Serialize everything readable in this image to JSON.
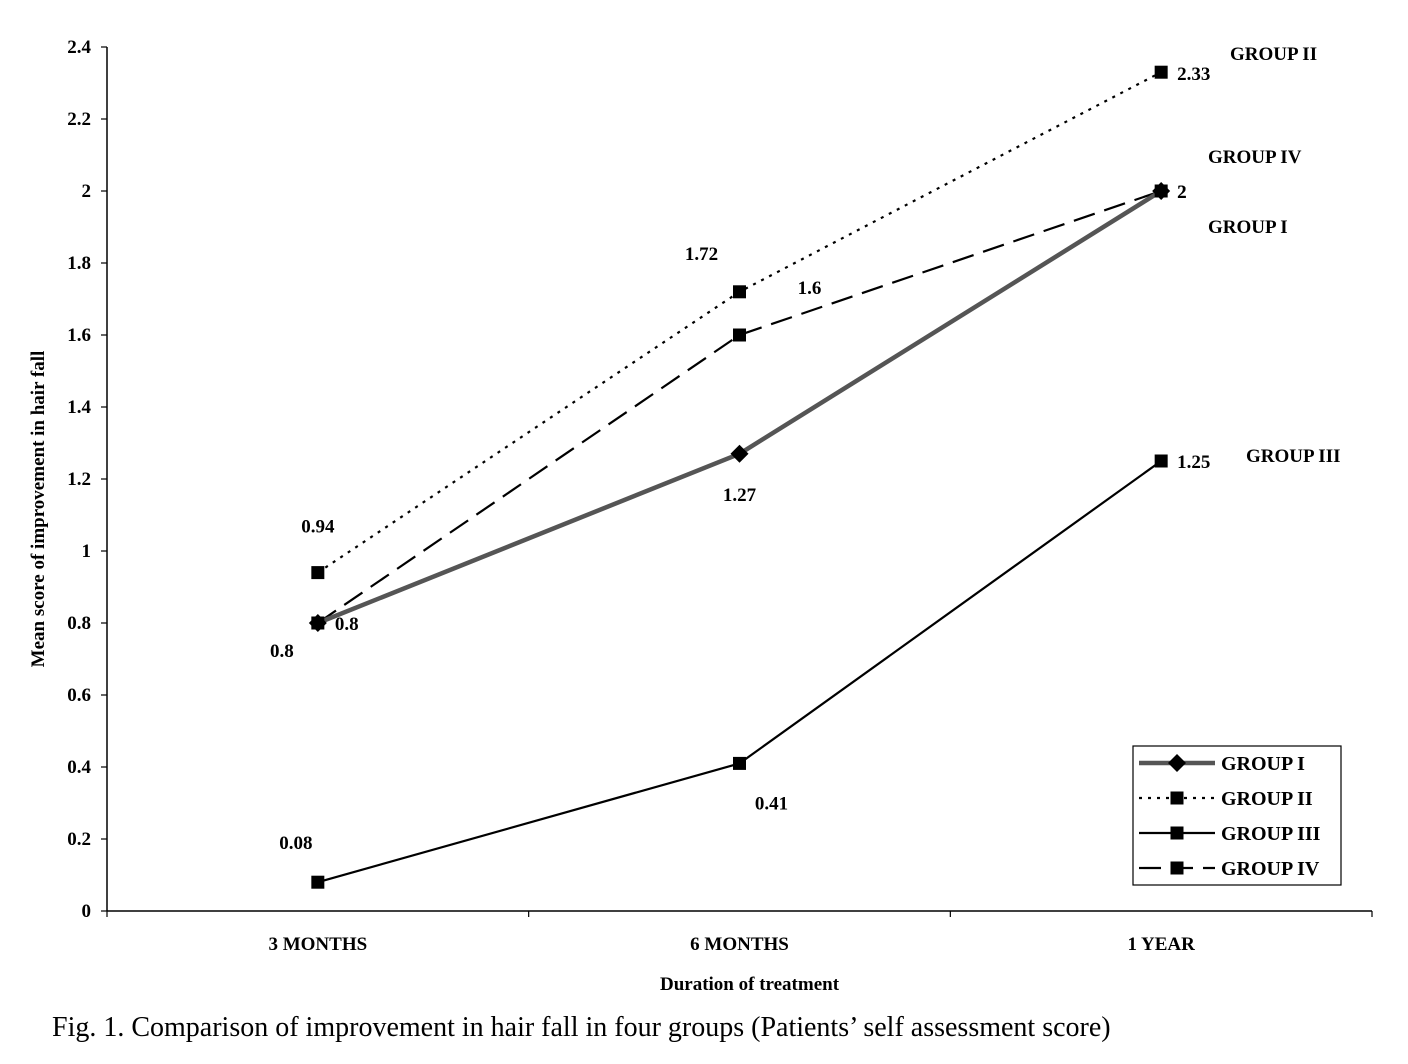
{
  "caption": "Fig.  1.  Comparison of improvement in hair fall in four groups (Patients’ self assessment score)",
  "chart_data": {
    "type": "line",
    "categories": [
      "3 MONTHS",
      "6 MONTHS",
      "1 YEAR"
    ],
    "xlabel": "Duration of treatment",
    "ylabel": "Mean score of improvement in hair fall",
    "ylim": [
      0,
      2.4
    ],
    "yticks": [
      "0",
      "0.2",
      "0.4",
      "0.6",
      "0.8",
      "1",
      "1.2",
      "1.4",
      "1.6",
      "1.8",
      "2",
      "2.2",
      "2.4"
    ],
    "grid": false,
    "legend_position": "bottom-right",
    "series": [
      {
        "name": "GROUP I",
        "values": [
          0.8,
          1.27,
          2
        ],
        "labels": [
          "0.8",
          "1.27",
          "2"
        ],
        "line_style": "solid-thick",
        "marker": "diamond",
        "color": "#555555"
      },
      {
        "name": "GROUP II",
        "values": [
          0.94,
          1.72,
          2.33
        ],
        "labels": [
          "0.94",
          "1.72",
          "2.33"
        ],
        "line_style": "dotted",
        "marker": "square",
        "color": "#000000"
      },
      {
        "name": "GROUP III",
        "values": [
          0.08,
          0.41,
          1.25
        ],
        "labels": [
          "0.08",
          "0.41",
          "1.25"
        ],
        "line_style": "solid",
        "marker": "square",
        "color": "#000000"
      },
      {
        "name": "GROUP IV",
        "values": [
          0.8,
          1.6,
          2
        ],
        "labels": [
          "0.8",
          "1.6",
          "2"
        ],
        "line_style": "dashed",
        "marker": "square",
        "color": "#000000"
      }
    ],
    "annotations": [
      "GROUP II",
      "GROUP IV",
      "GROUP I",
      "GROUP III"
    ]
  }
}
